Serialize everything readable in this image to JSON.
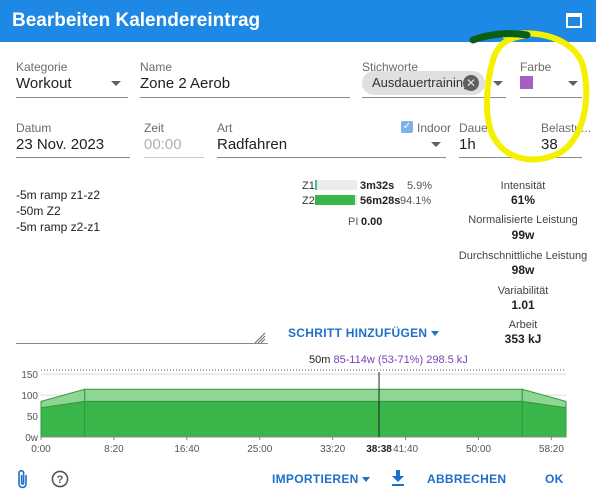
{
  "title": "Bearbeiten Kalendereintrag",
  "fields": {
    "kategorie": {
      "label": "Kategorie",
      "value": "Workout"
    },
    "name": {
      "label": "Name",
      "value": "Zone 2 Aerob"
    },
    "stichworte": {
      "label": "Stichworte",
      "chip": "Ausdauertraining"
    },
    "farbe": {
      "label": "Farbe",
      "color": "#a55fc4"
    },
    "datum": {
      "label": "Datum",
      "value": "23 Nov. 2023"
    },
    "zeit": {
      "label": "Zeit",
      "placeholder": "00:00"
    },
    "art": {
      "label": "Art",
      "value": "Radfahren"
    },
    "indoor": {
      "label": "Indoor",
      "checked": true
    },
    "dauer": {
      "label": "Dauer",
      "value": "1h"
    },
    "belastung": {
      "label": "Belastu...",
      "value": "38"
    }
  },
  "notes": [
    "-5m ramp  z1-z2",
    "-50m Z2",
    "-5m ramp z2-z1"
  ],
  "zones": [
    {
      "name": "Z1",
      "time": "3m32s",
      "pct": "5.9%",
      "fraction": 0.059
    },
    {
      "name": "Z2",
      "time": "56m28s",
      "pct": "94.1%",
      "fraction": 0.941
    }
  ],
  "pi": {
    "label": "PI",
    "value": "0.00"
  },
  "metrics": [
    {
      "label": "Intensität",
      "value": "61%"
    },
    {
      "label": "Normalisierte Leistung",
      "value": "99w"
    },
    {
      "label": "Durchschnittliche Leistung",
      "value": "98w"
    },
    {
      "label": "Variabilität",
      "value": "1.01"
    },
    {
      "label": "Arbeit",
      "value": "353 kJ"
    }
  ],
  "add_step": "SCHRITT HINZUFÜGEN",
  "summary": {
    "duration": "50m",
    "power": "85-114w (53-71%)",
    "energy": "298.5 kJ"
  },
  "chart_data": {
    "type": "area",
    "y_ticks": [
      "150",
      "100",
      "50",
      "0w"
    ],
    "x_ticks": [
      "0:00",
      "8:20",
      "16:40",
      "25:00",
      "33:20",
      "41:40",
      "50:00",
      "58:20"
    ],
    "cursor_label": "38:38",
    "ylim": [
      0,
      160
    ],
    "x_range_min": [
      0,
      60
    ],
    "ftp_line": 160,
    "segments": [
      {
        "x": [
          0,
          5
        ],
        "y_start": [
          70,
          85
        ],
        "y_end": [
          85,
          114
        ]
      },
      {
        "x": [
          5,
          55
        ],
        "y_start": [
          85,
          85
        ],
        "y_end": [
          114,
          114
        ]
      },
      {
        "x": [
          55,
          60
        ],
        "y_start": [
          85,
          70
        ],
        "y_end": [
          114,
          85
        ]
      }
    ],
    "profile_minutes": [
      0,
      5,
      55,
      60
    ],
    "profile_watts": [
      70,
      85,
      85,
      70
    ]
  },
  "footer": {
    "importieren": "IMPORTIEREN",
    "abbrechen": "ABBRECHEN",
    "ok": "OK"
  },
  "colors": {
    "primary": "#1e88e5",
    "accent_text": "#1e6fc9",
    "zone_green": "#3ab54a",
    "highlight": "#ffff00"
  }
}
